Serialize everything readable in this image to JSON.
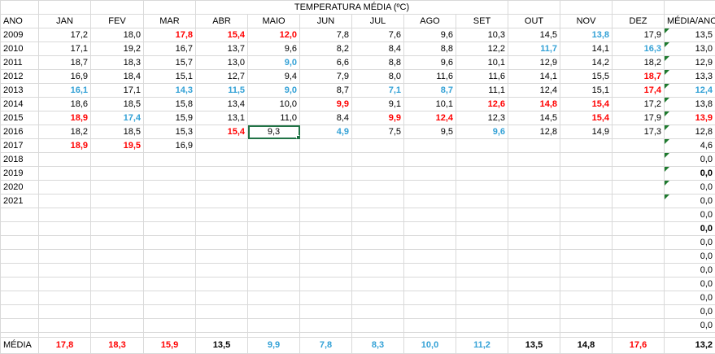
{
  "title": "TEMPERATURA MÉDIA (ºC)",
  "columns": [
    "ANO",
    "JAN",
    "FEV",
    "MAR",
    "ABR",
    "MAIO",
    "JUN",
    "JUL",
    "AGO",
    "SET",
    "OUT",
    "NOV",
    "DEZ",
    "MÉDIA/ANO"
  ],
  "rows": [
    {
      "year": "2009",
      "cells": [
        "17,2",
        "18,0",
        "17,8",
        "15,4",
        "12,0",
        "7,8",
        "7,6",
        "9,6",
        "10,3",
        "14,5",
        "13,8",
        "17,9"
      ],
      "mean": "13,5"
    },
    {
      "year": "2010",
      "cells": [
        "17,1",
        "19,2",
        "16,7",
        "13,7",
        "9,6",
        "8,2",
        "8,4",
        "8,8",
        "12,2",
        "11,7",
        "14,1",
        "16,3"
      ],
      "mean": "13,0"
    },
    {
      "year": "2011",
      "cells": [
        "18,7",
        "18,3",
        "15,7",
        "13,0",
        "9,0",
        "6,6",
        "8,8",
        "9,6",
        "10,1",
        "12,9",
        "14,2",
        "18,2"
      ],
      "mean": "12,9"
    },
    {
      "year": "2012",
      "cells": [
        "16,9",
        "18,4",
        "15,1",
        "12,7",
        "9,4",
        "7,9",
        "8,0",
        "11,6",
        "11,6",
        "14,1",
        "15,5",
        "18,7"
      ],
      "mean": "13,3"
    },
    {
      "year": "2013",
      "cells": [
        "16,1",
        "17,1",
        "14,3",
        "11,5",
        "9,0",
        "8,7",
        "7,1",
        "8,7",
        "11,1",
        "12,4",
        "15,1",
        "17,4"
      ],
      "mean": "12,4"
    },
    {
      "year": "2014",
      "cells": [
        "18,6",
        "18,5",
        "15,8",
        "13,4",
        "10,0",
        "9,9",
        "9,1",
        "10,1",
        "12,6",
        "14,8",
        "15,4",
        "17,2"
      ],
      "mean": "13,8"
    },
    {
      "year": "2015",
      "cells": [
        "18,9",
        "17,4",
        "15,9",
        "13,1",
        "11,0",
        "8,4",
        "9,9",
        "12,4",
        "12,3",
        "14,5",
        "15,4",
        "17,9"
      ],
      "mean": "13,9"
    },
    {
      "year": "2016",
      "cells": [
        "18,2",
        "18,5",
        "15,3",
        "15,4",
        "9,3",
        "4,9",
        "7,5",
        "9,5",
        "9,6",
        "12,8",
        "14,9",
        "17,3"
      ],
      "mean": "12,8"
    },
    {
      "year": "2017",
      "cells": [
        "18,9",
        "19,5",
        "16,9",
        "",
        "",
        "",
        "",
        "",
        "",
        "",
        "",
        ""
      ],
      "mean": "4,6"
    },
    {
      "year": "2018",
      "cells": [
        "",
        "",
        "",
        "",
        "",
        "",
        "",
        "",
        "",
        "",
        "",
        ""
      ],
      "mean": "0,0"
    },
    {
      "year": "2019",
      "cells": [
        "",
        "",
        "",
        "",
        "",
        "",
        "",
        "",
        "",
        "",
        "",
        ""
      ],
      "mean": "0,0"
    },
    {
      "year": "2020",
      "cells": [
        "",
        "",
        "",
        "",
        "",
        "",
        "",
        "",
        "",
        "",
        "",
        ""
      ],
      "mean": "0,0"
    },
    {
      "year": "2021",
      "cells": [
        "",
        "",
        "",
        "",
        "",
        "",
        "",
        "",
        "",
        "",
        "",
        ""
      ],
      "mean": "0,0"
    },
    {
      "year": "",
      "cells": [
        "",
        "",
        "",
        "",
        "",
        "",
        "",
        "",
        "",
        "",
        "",
        ""
      ],
      "mean": "0,0"
    },
    {
      "year": "",
      "cells": [
        "",
        "",
        "",
        "",
        "",
        "",
        "",
        "",
        "",
        "",
        "",
        ""
      ],
      "mean": "0,0"
    },
    {
      "year": "",
      "cells": [
        "",
        "",
        "",
        "",
        "",
        "",
        "",
        "",
        "",
        "",
        "",
        ""
      ],
      "mean": "0,0"
    },
    {
      "year": "",
      "cells": [
        "",
        "",
        "",
        "",
        "",
        "",
        "",
        "",
        "",
        "",
        "",
        ""
      ],
      "mean": "0,0"
    },
    {
      "year": "",
      "cells": [
        "",
        "",
        "",
        "",
        "",
        "",
        "",
        "",
        "",
        "",
        "",
        ""
      ],
      "mean": "0,0"
    },
    {
      "year": "",
      "cells": [
        "",
        "",
        "",
        "",
        "",
        "",
        "",
        "",
        "",
        "",
        "",
        ""
      ],
      "mean": "0,0"
    },
    {
      "year": "",
      "cells": [
        "",
        "",
        "",
        "",
        "",
        "",
        "",
        "",
        "",
        "",
        "",
        ""
      ],
      "mean": "0,0"
    },
    {
      "year": "",
      "cells": [
        "",
        "",
        "",
        "",
        "",
        "",
        "",
        "",
        "",
        "",
        "",
        ""
      ],
      "mean": "0,0"
    },
    {
      "year": "",
      "cells": [
        "",
        "",
        "",
        "",
        "",
        "",
        "",
        "",
        "",
        "",
        "",
        ""
      ],
      "mean": "0,0"
    }
  ],
  "footer": {
    "label": "MÉDIA",
    "values": [
      "17,8",
      "18,3",
      "15,9",
      "13,5",
      "9,9",
      "7,8",
      "8,3",
      "10,0",
      "11,2",
      "13,5",
      "14,8",
      "17,6"
    ],
    "overall": "13,2"
  },
  "styles": {
    "hot_color": "#ff0000",
    "cold_color": "#33a1d6",
    "hot": [
      [
        0,
        2
      ],
      [
        0,
        3
      ],
      [
        0,
        4
      ],
      [
        4,
        11
      ],
      [
        5,
        5
      ],
      [
        5,
        8
      ],
      [
        5,
        9
      ],
      [
        5,
        10
      ],
      [
        6,
        0
      ],
      [
        6,
        6
      ],
      [
        6,
        7
      ],
      [
        6,
        10
      ],
      [
        7,
        3
      ],
      [
        8,
        0
      ],
      [
        8,
        1
      ],
      [
        3,
        11
      ]
    ],
    "cold": [
      [
        0,
        10
      ],
      [
        1,
        9
      ],
      [
        1,
        11
      ],
      [
        2,
        4
      ],
      [
        4,
        0
      ],
      [
        4,
        2
      ],
      [
        4,
        3
      ],
      [
        4,
        4
      ],
      [
        4,
        6
      ],
      [
        4,
        7
      ],
      [
        6,
        1
      ],
      [
        7,
        5
      ],
      [
        7,
        8
      ]
    ],
    "bold_means": [
      10,
      14
    ],
    "bold_means_colored": [
      [
        4,
        "cold"
      ],
      [
        6,
        "hot"
      ]
    ],
    "footer_hot": [
      0,
      1,
      2,
      11
    ],
    "footer_cold": [
      4,
      5,
      6,
      7,
      8
    ],
    "footer_bold": [
      3,
      9,
      10
    ],
    "note_means": [
      0,
      1,
      2,
      3,
      4,
      5,
      6,
      7,
      8,
      9,
      10,
      11,
      12
    ],
    "selected_cell": [
      7,
      4
    ]
  }
}
